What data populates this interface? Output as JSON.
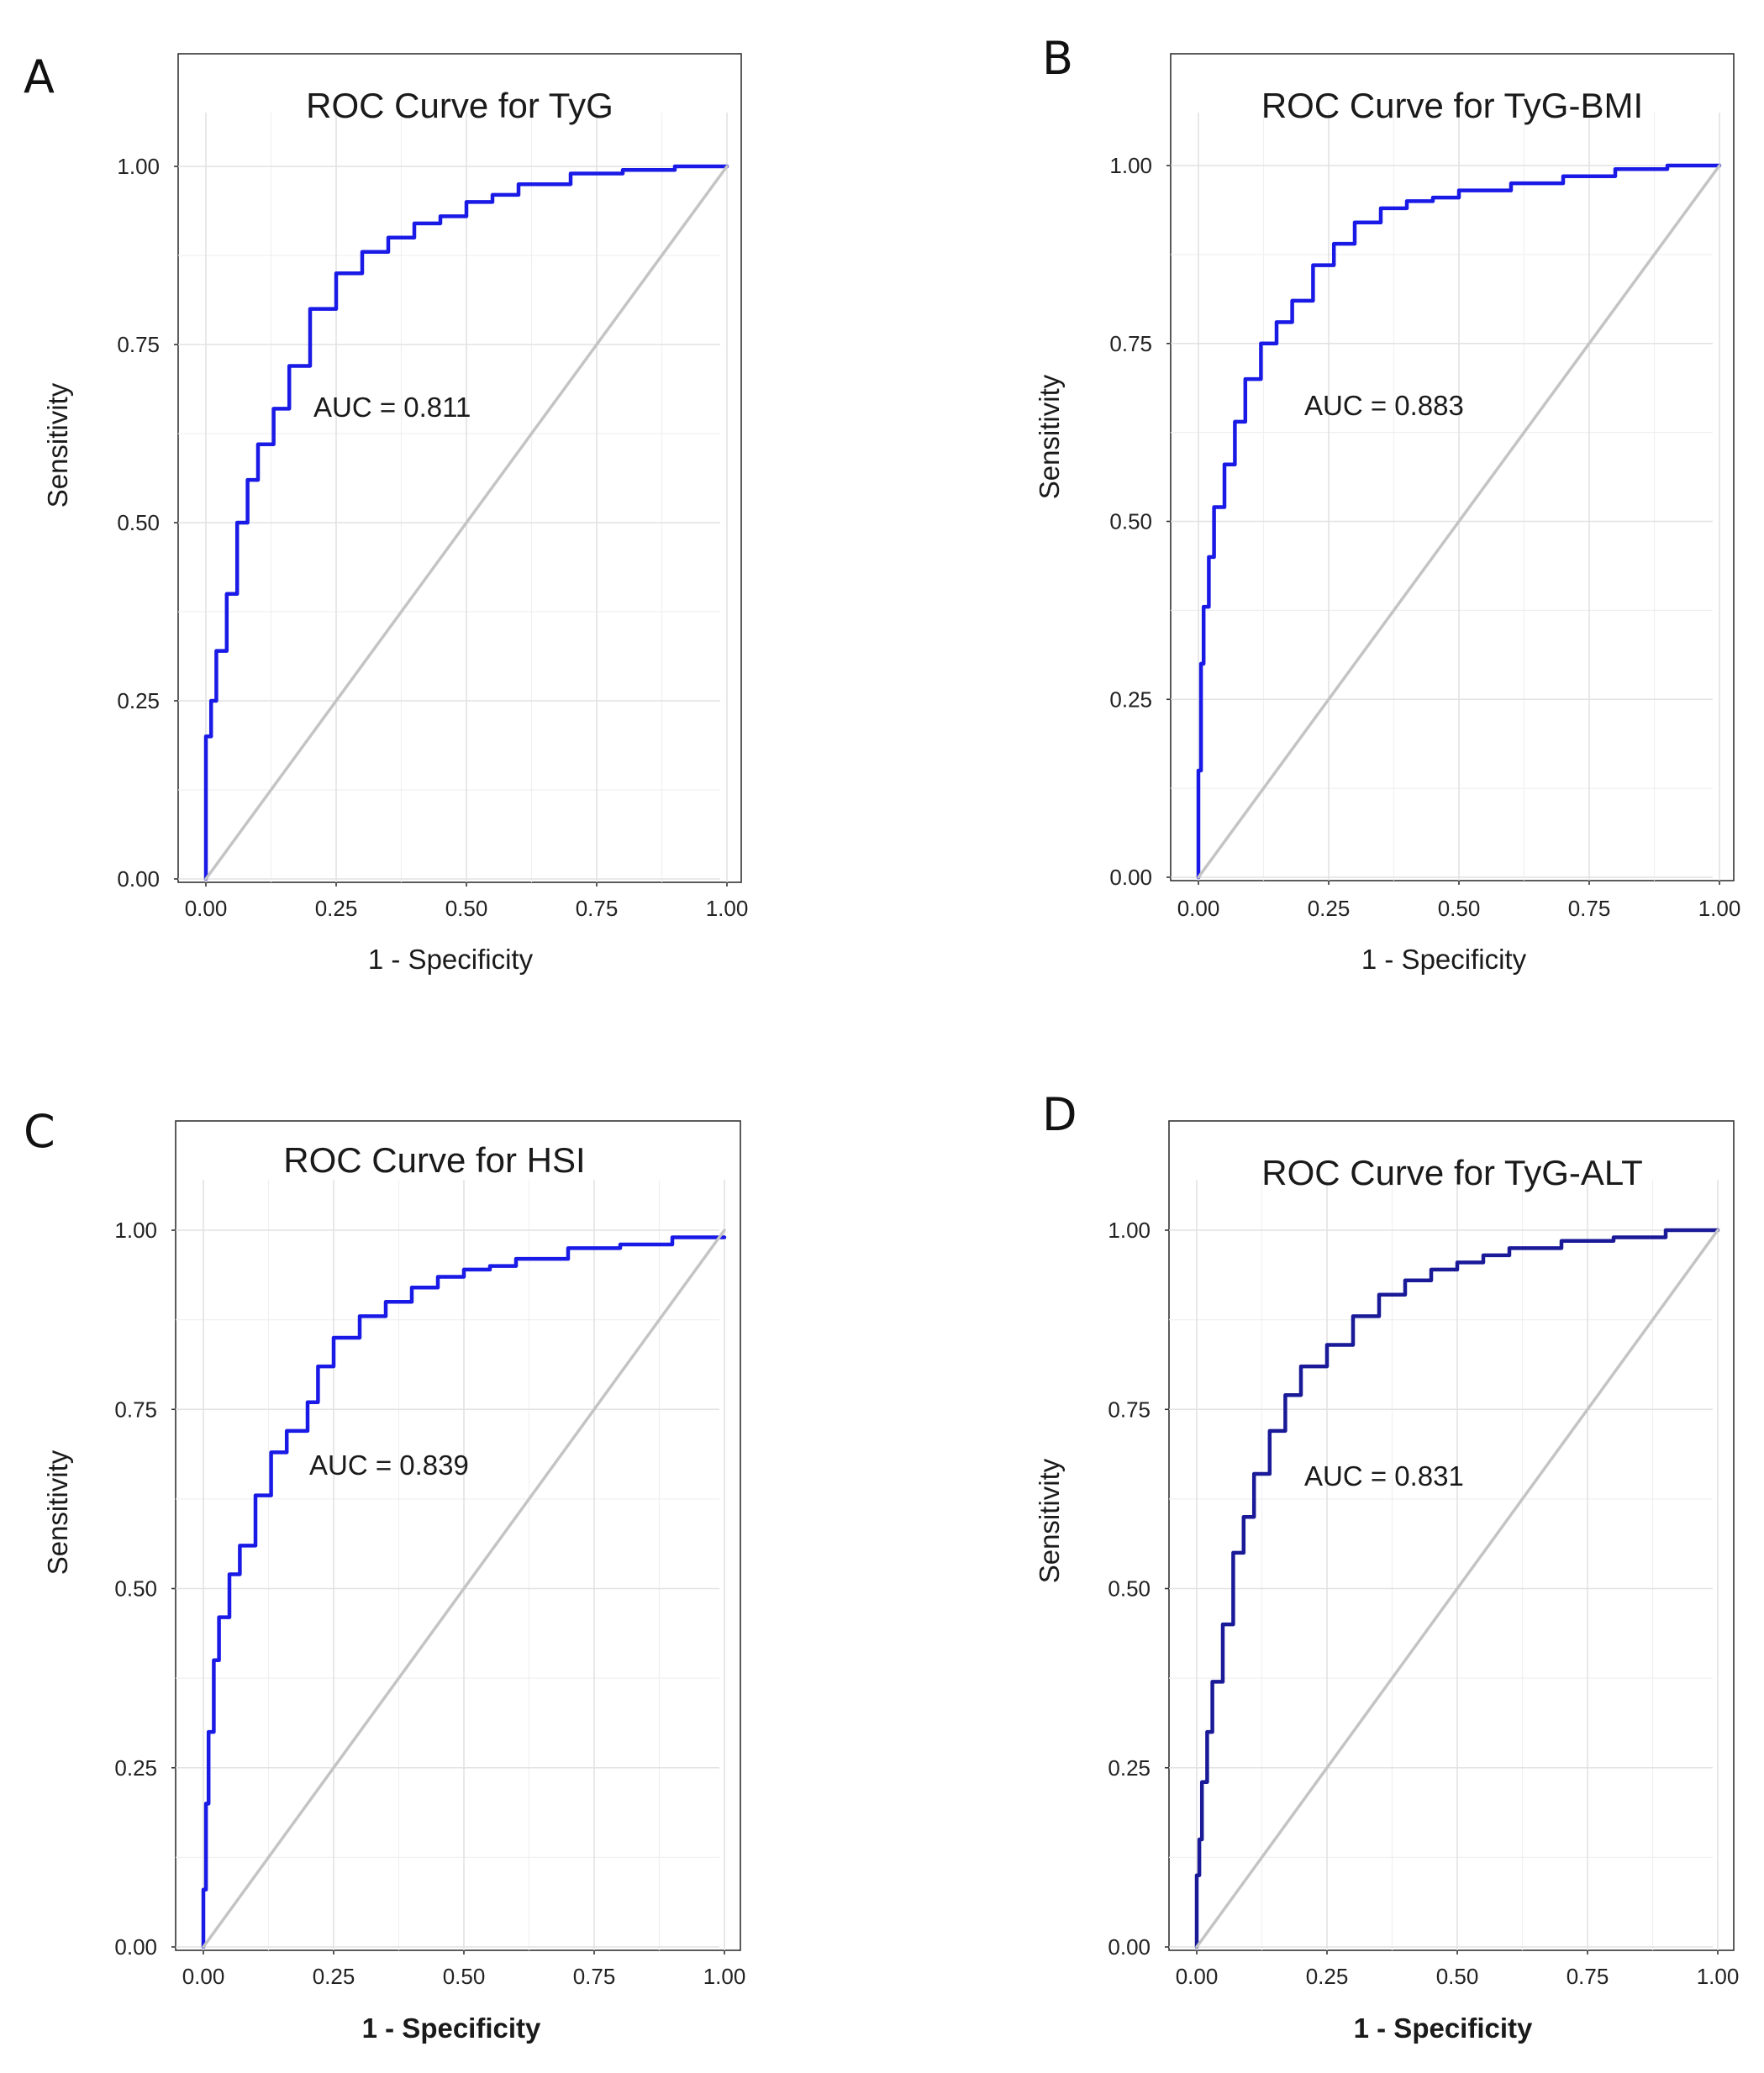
{
  "chart_data": [
    {
      "type": "line",
      "panel_label": "A",
      "title": "ROC Curve for TyG",
      "xlabel": "1 - Specificity",
      "ylabel": "Sensitivity",
      "annotation": "AUC = 0.811",
      "auc": 0.811,
      "xlim": [
        -0.05,
        1.05
      ],
      "ylim": [
        0,
        1.15
      ],
      "xticks": [
        "0.00",
        "0.25",
        "0.50",
        "0.75",
        "1.00"
      ],
      "yticks": [
        "0.00",
        "0.25",
        "0.50",
        "0.75",
        "1.00"
      ],
      "grid": true,
      "series": [
        {
          "name": "ROC",
          "color": "#1a1ae6",
          "x": [
            0,
            0.01,
            0.02,
            0.04,
            0.06,
            0.08,
            0.1,
            0.13,
            0.16,
            0.2,
            0.25,
            0.3,
            0.35,
            0.4,
            0.45,
            0.5,
            0.55,
            0.6,
            0.7,
            0.8,
            0.9,
            1.0
          ],
          "y": [
            0,
            0.2,
            0.25,
            0.32,
            0.4,
            0.5,
            0.56,
            0.61,
            0.66,
            0.72,
            0.8,
            0.85,
            0.88,
            0.9,
            0.92,
            0.93,
            0.95,
            0.96,
            0.975,
            0.99,
            0.995,
            1.0
          ]
        },
        {
          "name": "Reference",
          "color": "#c4c4c4",
          "x": [
            0,
            1
          ],
          "y": [
            0,
            1
          ]
        }
      ]
    },
    {
      "type": "line",
      "panel_label": "B",
      "title": "ROC Curve for TyG-BMI",
      "xlabel": "1 - Specificity",
      "ylabel": "Sensitivity",
      "annotation": "AUC = 0.883",
      "auc": 0.883,
      "xlim": [
        -0.05,
        1.05
      ],
      "ylim": [
        0,
        1.15
      ],
      "xticks": [
        "0.00",
        "0.25",
        "0.50",
        "0.75",
        "1.00"
      ],
      "yticks": [
        "0.00",
        "0.25",
        "0.50",
        "0.75",
        "1.00"
      ],
      "grid": true,
      "series": [
        {
          "name": "ROC",
          "color": "#1a1ae6",
          "x": [
            0,
            0.005,
            0.01,
            0.02,
            0.03,
            0.05,
            0.07,
            0.09,
            0.12,
            0.15,
            0.18,
            0.22,
            0.26,
            0.3,
            0.35,
            0.4,
            0.45,
            0.5,
            0.6,
            0.7,
            0.8,
            0.9,
            1.0
          ],
          "y": [
            0,
            0.15,
            0.3,
            0.38,
            0.45,
            0.52,
            0.58,
            0.64,
            0.7,
            0.75,
            0.78,
            0.81,
            0.86,
            0.89,
            0.92,
            0.94,
            0.95,
            0.955,
            0.965,
            0.975,
            0.985,
            0.995,
            1.0
          ]
        },
        {
          "name": "Reference",
          "color": "#c4c4c4",
          "x": [
            0,
            1
          ],
          "y": [
            0,
            1
          ]
        }
      ]
    },
    {
      "type": "line",
      "panel_label": "C",
      "title": "ROC Curve for HSI",
      "xlabel": "1 - Specificity",
      "ylabel": "Sensitivity",
      "annotation": "AUC = 0.839",
      "auc": 0.839,
      "xlim": [
        -0.05,
        1.05
      ],
      "ylim": [
        0,
        1.15
      ],
      "xticks": [
        "0.00",
        "0.25",
        "0.50",
        "0.75",
        "1.00"
      ],
      "yticks": [
        "0.00",
        "0.25",
        "0.50",
        "0.75",
        "1.00"
      ],
      "grid": true,
      "series": [
        {
          "name": "ROC",
          "color": "#1a1ae6",
          "x": [
            0,
            0.005,
            0.01,
            0.02,
            0.03,
            0.05,
            0.07,
            0.1,
            0.13,
            0.16,
            0.2,
            0.22,
            0.25,
            0.3,
            0.35,
            0.4,
            0.45,
            0.5,
            0.55,
            0.6,
            0.7,
            0.8,
            0.9,
            1.0
          ],
          "y": [
            0,
            0.08,
            0.2,
            0.3,
            0.4,
            0.46,
            0.52,
            0.56,
            0.63,
            0.69,
            0.72,
            0.76,
            0.81,
            0.85,
            0.88,
            0.9,
            0.92,
            0.935,
            0.945,
            0.95,
            0.96,
            0.975,
            0.98,
            0.99
          ]
        },
        {
          "name": "Reference",
          "color": "#c4c4c4",
          "x": [
            0,
            1
          ],
          "y": [
            0,
            1
          ]
        }
      ]
    },
    {
      "type": "line",
      "panel_label": "D",
      "title": "ROC Curve for TyG-ALT",
      "xlabel": "1 - Specificity",
      "ylabel": "Sensitivity",
      "annotation": "AUC = 0.831",
      "auc": 0.831,
      "xlim": [
        -0.05,
        1.05
      ],
      "ylim": [
        0,
        1.15
      ],
      "xticks": [
        "0.00",
        "0.25",
        "0.50",
        "0.75",
        "1.00"
      ],
      "yticks": [
        "0.00",
        "0.25",
        "0.50",
        "0.75",
        "1.00"
      ],
      "grid": true,
      "series": [
        {
          "name": "ROC",
          "color": "#1a1a99",
          "x": [
            0,
            0.005,
            0.01,
            0.02,
            0.03,
            0.05,
            0.07,
            0.09,
            0.11,
            0.14,
            0.17,
            0.2,
            0.25,
            0.3,
            0.35,
            0.4,
            0.45,
            0.5,
            0.55,
            0.6,
            0.7,
            0.8,
            0.9,
            1.0
          ],
          "y": [
            0,
            0.1,
            0.15,
            0.23,
            0.3,
            0.37,
            0.45,
            0.55,
            0.6,
            0.66,
            0.72,
            0.77,
            0.81,
            0.84,
            0.88,
            0.91,
            0.93,
            0.945,
            0.955,
            0.965,
            0.975,
            0.985,
            0.99,
            1.0
          ]
        },
        {
          "name": "Reference",
          "color": "#c4c4c4",
          "x": [
            0,
            1
          ],
          "y": [
            0,
            1
          ]
        }
      ]
    }
  ]
}
